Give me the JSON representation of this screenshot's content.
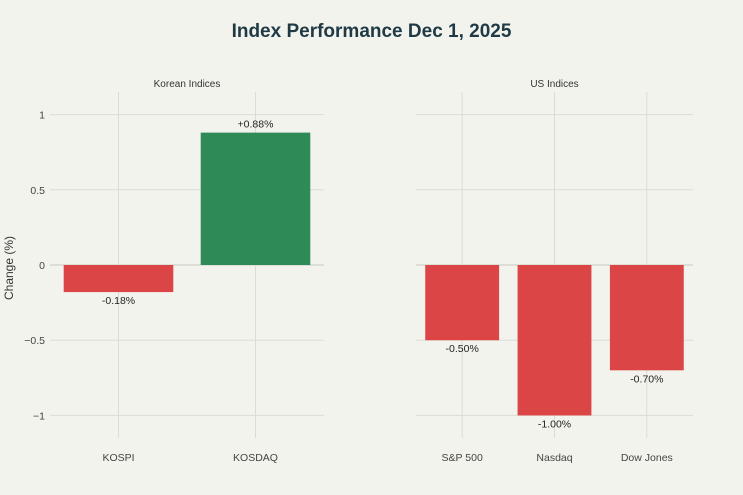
{
  "chart_data": {
    "type": "bar",
    "title": "Index Performance Dec 1, 2025",
    "ylabel": "Change (%)",
    "ylim": [
      -1.15,
      1.15
    ],
    "yticks": [
      1,
      0.5,
      0,
      -0.5,
      -1
    ],
    "ytick_labels": [
      "1",
      "0.5",
      "0",
      "−0.5",
      "−1"
    ],
    "grid": true,
    "colors": {
      "positive": "#2e8b57",
      "negative": "#dc4545"
    },
    "panels": [
      {
        "subtitle": "Korean Indices",
        "categories": [
          "KOSPI",
          "KOSDAQ"
        ],
        "values": [
          -0.18,
          0.88
        ],
        "labels": [
          "-0.18%",
          "+0.88%"
        ]
      },
      {
        "subtitle": "US Indices",
        "categories": [
          "S&P 500",
          "Nasdaq",
          "Dow Jones"
        ],
        "values": [
          -0.5,
          -1.0,
          -0.7
        ],
        "labels": [
          "-0.50%",
          "-1.00%",
          "-0.70%"
        ]
      }
    ]
  }
}
